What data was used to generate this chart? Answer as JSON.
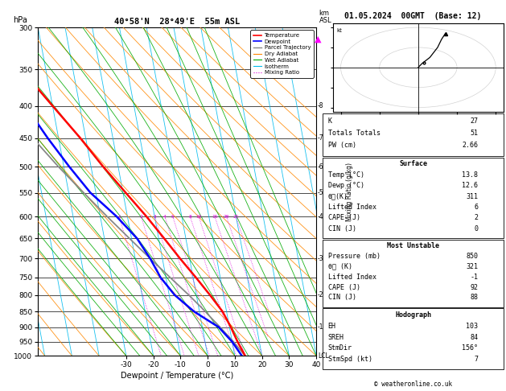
{
  "title_left": "40°58'N  28°49'E  55m ASL",
  "title_right": "01.05.2024  00GMT  (Base: 12)",
  "xlabel": "Dewpoint / Temperature (°C)",
  "ylabel_left": "hPa",
  "pressure_major": [
    300,
    350,
    400,
    450,
    500,
    550,
    600,
    650,
    700,
    750,
    800,
    850,
    900,
    950,
    1000
  ],
  "temp_ticks": [
    -30,
    -20,
    -10,
    0,
    10,
    20,
    30,
    40
  ],
  "T_min": -40,
  "T_max": 45,
  "P_min": 300,
  "P_max": 1000,
  "skew": 22.5,
  "temp_profile": {
    "pressure": [
      1000,
      950,
      900,
      850,
      800,
      750,
      700,
      650,
      600,
      550,
      500,
      450,
      400,
      350,
      300
    ],
    "temp": [
      13.8,
      12.0,
      10.5,
      8.5,
      5.0,
      1.0,
      -3.5,
      -8.0,
      -13.0,
      -19.0,
      -25.5,
      -32.0,
      -40.0,
      -49.0,
      -56.0
    ]
  },
  "dewp_profile": {
    "pressure": [
      1000,
      950,
      900,
      850,
      800,
      750,
      700,
      650,
      600,
      550,
      500,
      450,
      400,
      350,
      300
    ],
    "temp": [
      12.6,
      10.0,
      6.0,
      -2.0,
      -8.0,
      -12.0,
      -14.5,
      -18.0,
      -24.0,
      -32.0,
      -38.0,
      -44.0,
      -50.0,
      -56.0,
      -62.0
    ]
  },
  "parcel_profile": {
    "pressure": [
      1000,
      950,
      900,
      860,
      850,
      800,
      750,
      700,
      650,
      600,
      550,
      500,
      450,
      400,
      350,
      300
    ],
    "temp": [
      13.8,
      10.5,
      6.5,
      3.0,
      2.2,
      -2.8,
      -8.5,
      -14.5,
      -20.8,
      -27.5,
      -34.5,
      -42.0,
      -49.5,
      -57.5,
      -66.0,
      -74.0
    ]
  },
  "mixing_ratios": [
    1,
    2,
    3,
    4,
    5,
    8,
    10,
    15,
    20,
    25
  ],
  "km_levels": {
    "1": 900,
    "2": 800,
    "3": 700,
    "4": 600,
    "5": 550,
    "6": 500,
    "7": 450,
    "8": 400
  },
  "background_color": "#ffffff",
  "temp_color": "#ff0000",
  "dewp_color": "#0000ff",
  "parcel_color": "#888888",
  "isotherm_color": "#00bbee",
  "dry_adiabat_color": "#ff8800",
  "wet_adiabat_color": "#00aa00",
  "mixing_ratio_color": "#dd00dd",
  "info_K": 27,
  "info_TT": 51,
  "info_PW": "2.66",
  "surf_temp": "13.8",
  "surf_dewp": "12.6",
  "surf_theta_e": "311",
  "surf_li": "6",
  "surf_cape": "2",
  "surf_cin": "0",
  "mu_pressure": "850",
  "mu_theta_e": "321",
  "mu_li": "-1",
  "mu_cape": "92",
  "mu_cin": "88",
  "hodo_EH": "103",
  "hodo_SREH": "84",
  "hodo_stmdir": "156°",
  "hodo_stmspd": "7",
  "copyright": "© weatheronline.co.uk"
}
